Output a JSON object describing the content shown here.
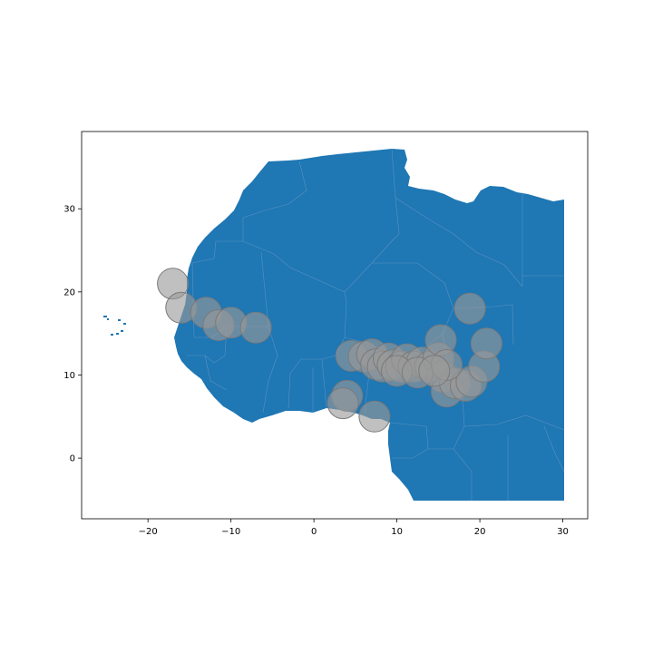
{
  "chart_data": {
    "type": "scatter",
    "xlim": [
      -28,
      33
    ],
    "ylim": [
      -7.3,
      39.3
    ],
    "x_ticks": [
      -20,
      -10,
      0,
      10,
      20,
      30
    ],
    "x_tick_labels": [
      "−20",
      "−10",
      "0",
      "10",
      "20",
      "30"
    ],
    "y_ticks": [
      0,
      10,
      20,
      30
    ],
    "y_tick_labels": [
      "0",
      "10",
      "20",
      "30"
    ],
    "grid": false,
    "land_color": "#1f77b4",
    "border_color": "#6c9bc5",
    "marker_color": "#9a9a9a",
    "marker_edge_color": "#7a7a7a",
    "marker_opacity": 0.62,
    "series": [
      {
        "points": [
          {
            "x": -17.0,
            "y": 21.0
          },
          {
            "x": -16.0,
            "y": 18.1
          },
          {
            "x": -13.0,
            "y": 17.5
          },
          {
            "x": -11.5,
            "y": 16.0
          },
          {
            "x": -10.0,
            "y": 16.3
          },
          {
            "x": -7.0,
            "y": 15.7
          },
          {
            "x": 4.5,
            "y": 12.3
          },
          {
            "x": 6.0,
            "y": 12.2
          },
          {
            "x": 7.0,
            "y": 12.5
          },
          {
            "x": 7.5,
            "y": 11.3
          },
          {
            "x": 8.3,
            "y": 11.0
          },
          {
            "x": 9.0,
            "y": 12.0
          },
          {
            "x": 9.5,
            "y": 11.2
          },
          {
            "x": 10.5,
            "y": 11.0
          },
          {
            "x": 11.2,
            "y": 11.9
          },
          {
            "x": 12.0,
            "y": 11.0
          },
          {
            "x": 13.0,
            "y": 11.5
          },
          {
            "x": 14.0,
            "y": 11.0
          },
          {
            "x": 15.0,
            "y": 12.0
          },
          {
            "x": 15.3,
            "y": 14.2
          },
          {
            "x": 15.5,
            "y": 9.8
          },
          {
            "x": 16.0,
            "y": 8.0
          },
          {
            "x": 17.0,
            "y": 9.0
          },
          {
            "x": 18.3,
            "y": 8.7
          },
          {
            "x": 19.0,
            "y": 9.2
          },
          {
            "x": 18.8,
            "y": 18.0
          },
          {
            "x": 20.5,
            "y": 11.0
          },
          {
            "x": 20.8,
            "y": 13.8
          },
          {
            "x": 4.0,
            "y": 7.5
          },
          {
            "x": 3.5,
            "y": 6.6
          },
          {
            "x": 7.3,
            "y": 5.0
          },
          {
            "x": 10.0,
            "y": 10.5
          },
          {
            "x": 12.5,
            "y": 10.3
          },
          {
            "x": 16.0,
            "y": 11.2
          },
          {
            "x": 14.5,
            "y": 10.5
          }
        ]
      }
    ]
  }
}
